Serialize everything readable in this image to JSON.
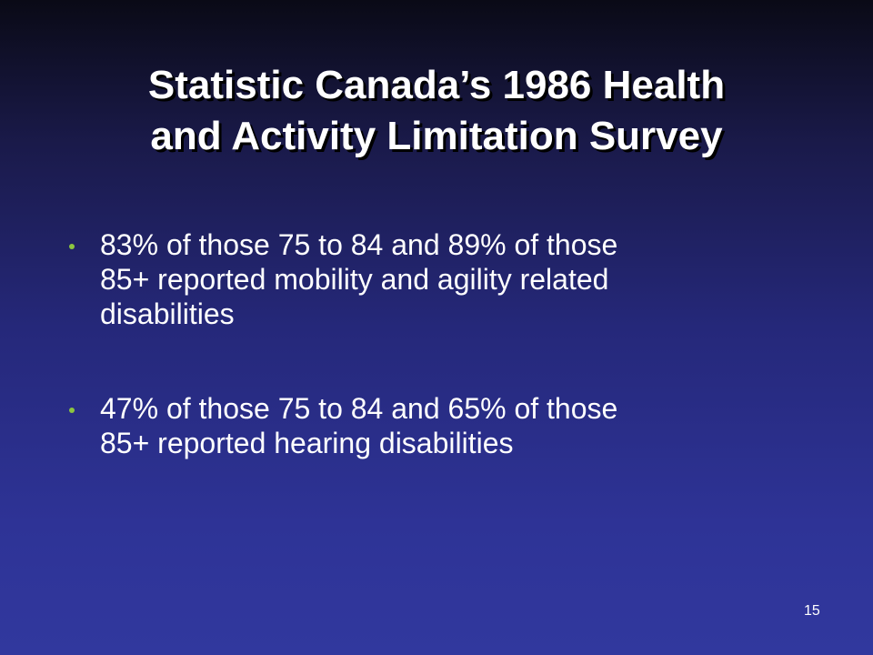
{
  "slide": {
    "title_lines": [
      "Statistic Canada’s 1986 Health",
      "and Activity Limitation Survey"
    ],
    "bullets": [
      {
        "lines": [
          "83% of those 75 to 84 and 89% of those",
          "85+ reported mobility and agility related",
          "disabilities"
        ]
      },
      {
        "lines": [
          "47% of those 75 to 84 and 65% of those",
          "85+ reported hearing disabilities"
        ]
      }
    ],
    "page_number": "15"
  },
  "colors": {
    "background_top": "#0a0a16",
    "background_bottom": "#31389e",
    "text": "#ffffff",
    "bullet": "#8cc63f"
  }
}
